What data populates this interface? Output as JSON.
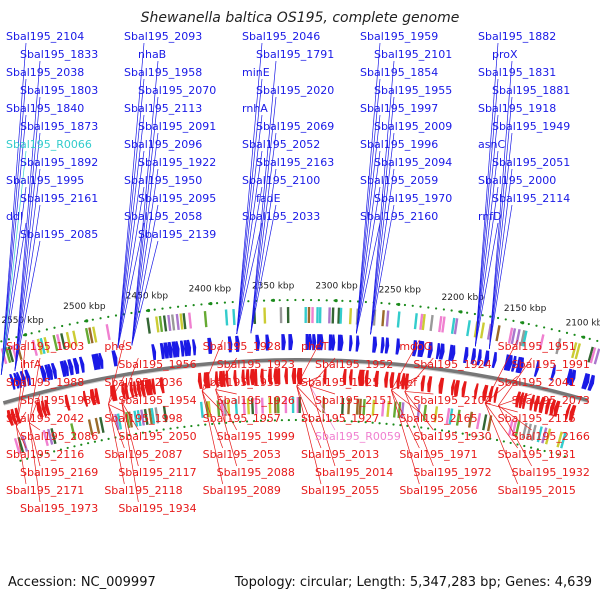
{
  "title": "Shewanella baltica OS195, complete genome",
  "footer": {
    "accession": "Accession: NC_009997",
    "summary": "Topology: circular; Length: 5,347,283 bp; Genes: 4,639"
  },
  "colors": {
    "forward_gene": "#1a1ae6",
    "reverse_gene": "#e61a1a",
    "rna_forward": "#33cccc",
    "rna_reverse": "#f080d0",
    "backbone": "#777777",
    "tick_dot": "#1a8a1a"
  },
  "kbp_ticks": [
    "2100 kbp",
    "2150 kbp",
    "2200 kbp",
    "2250 kbp",
    "2300 kbp",
    "2350 kbp",
    "2400 kbp",
    "2450 kbp",
    "2500 kbp",
    "2550 kbp"
  ],
  "top_labels": [
    "Sbal195_2104",
    "Sbal195_2093",
    "Sbal195_2046",
    "Sbal195_1959",
    "Sbal195_1882",
    "Sbal195_1833",
    "nhaB",
    "Sbal195_1791",
    "Sbal195_2101",
    "proX",
    "Sbal195_2038",
    "Sbal195_1958",
    "minE",
    "Sbal195_1854",
    "Sbal195_1831",
    "Sbal195_1803",
    "Sbal195_2070",
    "Sbal195_2020",
    "Sbal195_1955",
    "Sbal195_1881",
    "Sbal195_1840",
    "Sbal195_2113",
    "rnhA",
    "Sbal195_1997",
    "Sbal195_1918",
    "Sbal195_1873",
    "Sbal195_2091",
    "Sbal195_2069",
    "Sbal195_2009",
    "Sbal195_1949",
    "Sbal195_R0066",
    "Sbal195_2096",
    "Sbal195_2052",
    "Sbal195_1996",
    "asnC",
    "Sbal195_1892",
    "Sbal195_1922",
    "Sbal195_2163",
    "Sbal195_2094",
    "Sbal195_2051",
    "Sbal195_1995",
    "Sbal195_1950",
    "Sbal195_2100",
    "Sbal195_2059",
    "Sbal195_2000",
    "Sbal195_2161",
    "Sbal195_2095",
    "fadE",
    "Sbal195_1970",
    "Sbal195_2114",
    "ddl",
    "Sbal195_2058",
    "Sbal195_2033",
    "Sbal195_2160",
    "rnfD",
    "Sbal195_2085",
    "Sbal195_2139"
  ],
  "bottom_labels": [
    "Sbal195_1903",
    "pheS",
    "Sbal195_1928",
    "pheT",
    "mdoG",
    "Sbal195_1951",
    "ihfA",
    "Sbal195_1956",
    "Sbal195_1923",
    "Sbal195_1952",
    "Sbal195_1924",
    "Sbal195_1991",
    "Sbal195_1988",
    "Sbal195_2036",
    "Sbal195_1953",
    "Sbal195_1925",
    "def",
    "Sbal195_2041",
    "Sbal195_1989",
    "Sbal195_1954",
    "Sbal195_1926",
    "Sbal195_2151",
    "Sbal195_2102",
    "Sbal195_2073",
    "Sbal195_2042",
    "Sbal195_1998",
    "Sbal195_1957",
    "Sbal195_1927",
    "Sbal195_2165",
    "Sbal195_2115",
    "Sbal195_2086",
    "Sbal195_2050",
    "Sbal195_1999",
    "Sbal195_R0059",
    "Sbal195_1930",
    "Sbal195_2166",
    "Sbal195_2116",
    "Sbal195_2087",
    "Sbal195_2053",
    "Sbal195_2013",
    "Sbal195_1971",
    "Sbal195_1931",
    "Sbal195_2169",
    "Sbal195_2117",
    "Sbal195_2088",
    "Sbal195_2014",
    "Sbal195_1972",
    "Sbal195_1932",
    "Sbal195_2171",
    "Sbal195_2118",
    "Sbal195_2089",
    "Sbal195_2055",
    "Sbal195_2056",
    "Sbal195_2015",
    "Sbal195_1973",
    "Sbal195_1934"
  ]
}
